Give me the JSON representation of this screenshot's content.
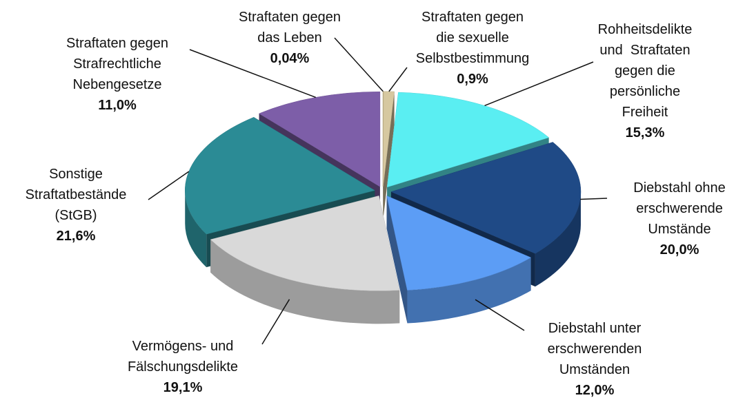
{
  "chart_data": {
    "type": "pie",
    "categories": [
      "Straftaten gegen\ndas Leben",
      "Straftaten gegen\ndie sexuelle\nSelbstbestimmung",
      "Rohheitsdelikte\nund  Straftaten\ngegen die\npersönliche\nFreiheit",
      "Diebstahl ohne\nerschwerende\nUmstände",
      "Diebstahl unter\nerschwerenden\nUmständen",
      "Vermögens- und\nFälschungsdelikte",
      "Sonstige\nStraftatbestände\n(StGB)",
      "Straftaten gegen\nStrafrechtliche\nNebengesetze"
    ],
    "values": [
      0.04,
      0.9,
      15.3,
      20.0,
      12.0,
      19.1,
      21.6,
      11.0
    ],
    "value_labels": [
      "0,04%",
      "0,9%",
      "15,3%",
      "20,0%",
      "12,0%",
      "19,1%",
      "21,6%",
      "11,0%"
    ],
    "colors": [
      "#c2b280",
      "#d6c8a0",
      "#5aeef2",
      "#1f4a86",
      "#5c9df5",
      "#d9d9d9",
      "#2b8b95",
      "#7d5ea8"
    ]
  }
}
